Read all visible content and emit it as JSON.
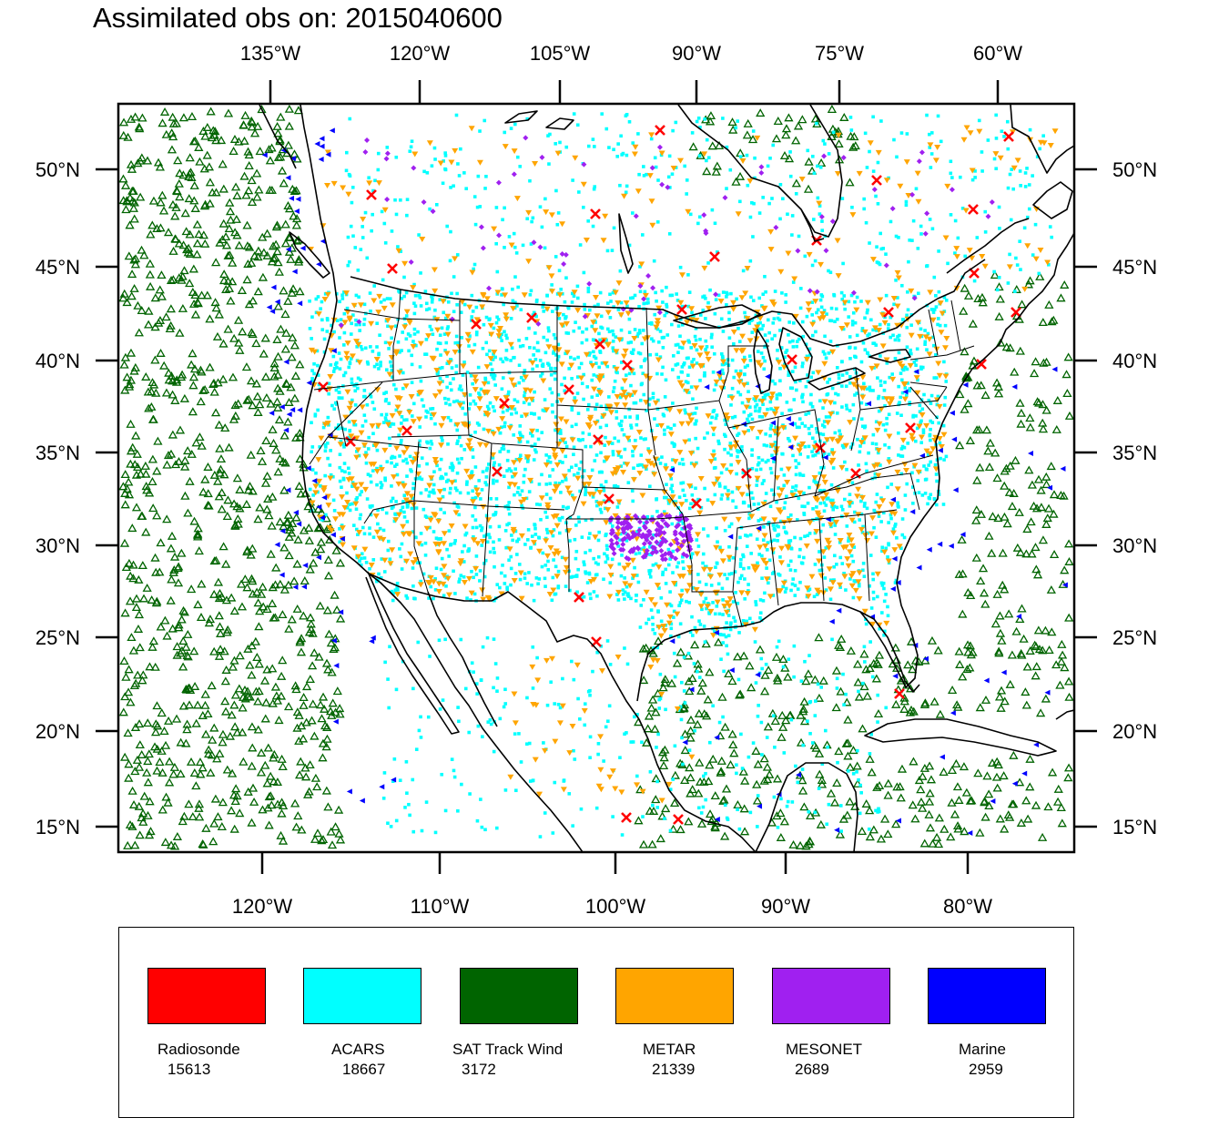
{
  "title": "Assimilated obs on: 2015040600",
  "map": {
    "projection": "lambert-conformal",
    "top_lon_labels": [
      "135°W",
      "120°W",
      "105°W",
      "90°W",
      "75°W",
      "60°W"
    ],
    "bottom_lon_labels": [
      "120°W",
      "110°W",
      "100°W",
      "90°W",
      "80°W"
    ],
    "lat_labels": [
      "50°N",
      "45°N",
      "40°N",
      "35°N",
      "30°N",
      "25°N",
      "20°N",
      "15°N"
    ],
    "coastline_color": "#000000",
    "marker_colors": {
      "Radiosonde": "#ff0000",
      "ACARS": "#00ffff",
      "SAT Track Wind": "#006400",
      "METAR": "#ffa500",
      "MESONET": "#a020f0",
      "Marine": "#0000ff"
    }
  },
  "legend": [
    {
      "name": "Radiosonde",
      "count": "15613",
      "color": "#ff0000"
    },
    {
      "name": "ACARS",
      "count": "18667",
      "color": "#00ffff"
    },
    {
      "name": "SAT Track Wind",
      "count": "3172",
      "color": "#006400"
    },
    {
      "name": "METAR",
      "count": "21339",
      "color": "#ffa500"
    },
    {
      "name": "MESONET",
      "count": "2689",
      "color": "#a020f0"
    },
    {
      "name": "Marine",
      "count": "2959",
      "color": "#0000ff"
    }
  ]
}
